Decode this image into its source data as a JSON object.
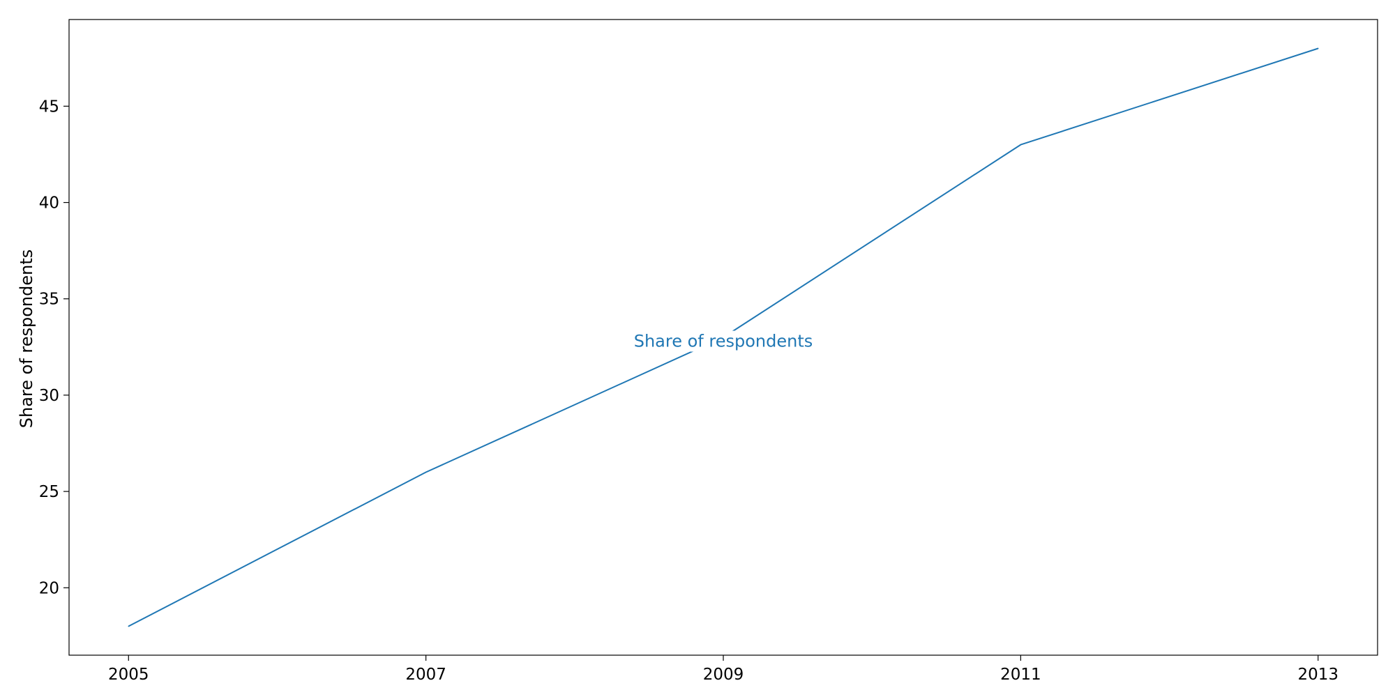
{
  "chart_data": {
    "type": "line",
    "title": "",
    "xlabel": "",
    "ylabel": "Share of respondents",
    "x": [
      2005,
      2007,
      2009,
      2011,
      2013
    ],
    "x_ticks": [
      "2005",
      "2007",
      "2009",
      "2011",
      "2013"
    ],
    "y_ticks": [
      20,
      25,
      30,
      35,
      40,
      45
    ],
    "xlim": [
      2004.6,
      2013.4
    ],
    "ylim": [
      16.5,
      49.5
    ],
    "grid": false,
    "series": [
      {
        "name": "Share of respondents",
        "values": [
          18,
          26,
          33,
          43,
          48
        ],
        "color": "#1f77b4"
      }
    ],
    "annotations": [
      {
        "text": "Share of respondents",
        "x": 2009,
        "y": 32.8
      }
    ]
  }
}
